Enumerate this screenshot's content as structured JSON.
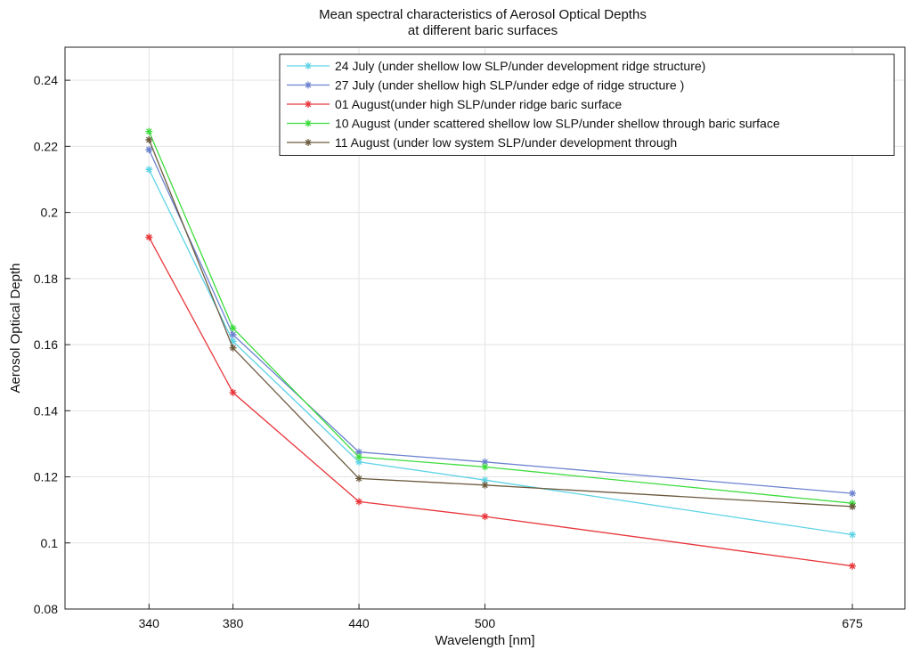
{
  "chart_data": {
    "type": "line",
    "title": [
      "Mean spectral characteristics of Aerosol Optical Depths",
      "at different baric surfaces"
    ],
    "xlabel": "Wavelength [nm]",
    "ylabel": "Aerosol Optical Depth",
    "x": [
      340,
      380,
      440,
      500,
      675
    ],
    "xlim": [
      300,
      700
    ],
    "ylim": [
      0.08,
      0.25
    ],
    "xticks": [
      "340",
      "380",
      "440",
      "500",
      "675"
    ],
    "yticks": [
      {
        "v": 0.08,
        "label": "0.08"
      },
      {
        "v": 0.1,
        "label": "0.1"
      },
      {
        "v": 0.12,
        "label": "0.12"
      },
      {
        "v": 0.14,
        "label": "0.14"
      },
      {
        "v": 0.16,
        "label": "0.16"
      },
      {
        "v": 0.18,
        "label": "0.18"
      },
      {
        "v": 0.2,
        "label": "0.2"
      },
      {
        "v": 0.22,
        "label": "0.22"
      },
      {
        "v": 0.24,
        "label": "0.24"
      }
    ],
    "grid": true,
    "legend_position": "top-right",
    "series": [
      {
        "name": "24 July (under shellow low SLP/under development ridge structure)",
        "color": "#5fd3e6",
        "values": [
          0.213,
          0.161,
          0.1245,
          0.119,
          0.1025
        ]
      },
      {
        "name": "27 July (under shellow high SLP/under edge of ridge structure )",
        "color": "#6b82cf",
        "values": [
          0.219,
          0.163,
          0.1275,
          0.1245,
          0.115
        ]
      },
      {
        "name": "01 August(under high SLP/under ridge baric surface",
        "color": "#e8363b",
        "values": [
          0.1925,
          0.1455,
          0.1125,
          0.108,
          0.093
        ]
      },
      {
        "name": "10 August (under scattered shellow low SLP/under shellow through baric surface",
        "color": "#3ddc3d",
        "values": [
          0.2245,
          0.165,
          0.126,
          0.123,
          0.112
        ]
      },
      {
        "name": "11 August (under low system SLP/under development through",
        "color": "#6b5a3e",
        "values": [
          0.222,
          0.159,
          0.1195,
          0.1175,
          0.111
        ]
      }
    ]
  }
}
